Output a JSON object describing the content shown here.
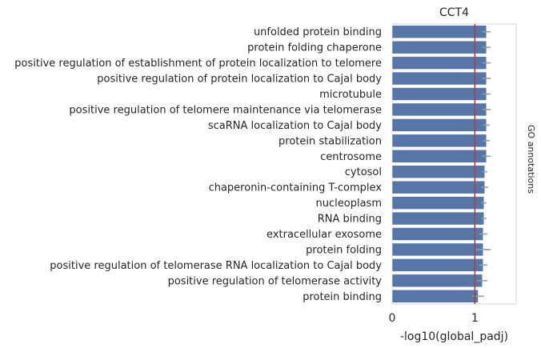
{
  "chart_data": {
    "type": "bar",
    "orientation": "horizontal",
    "title": "CCT4",
    "xlabel": "-log10(global_padj)",
    "ylabel": "GO annotations",
    "xlim": [
      0,
      1.5
    ],
    "xticks": [
      0,
      1
    ],
    "reference_line": 1.0,
    "grid": true,
    "bar_color": "#5875a8",
    "error_color": "#9a9a9a",
    "ref_color": "#c0392b",
    "categories": [
      "unfolded protein binding",
      "protein folding chaperone",
      "positive regulation of establishment of protein localization to telomere",
      "positive regulation of protein localization to Cajal body",
      "microtubule",
      "positive regulation of telomere maintenance via telomerase",
      "scaRNA localization to Cajal body",
      "protein stabilization",
      "centrosome",
      "cytosol",
      "chaperonin-containing T-complex",
      "nucleoplasm",
      "RNA binding",
      "extracellular exosome",
      "protein folding",
      "positive regulation of telomerase RNA localization to Cajal body",
      "positive regulation of telomerase activity",
      "protein binding"
    ],
    "values": [
      1.14,
      1.14,
      1.14,
      1.14,
      1.14,
      1.14,
      1.14,
      1.14,
      1.14,
      1.12,
      1.12,
      1.11,
      1.11,
      1.1,
      1.1,
      1.1,
      1.09,
      1.04
    ],
    "errors": [
      0.05,
      0.05,
      0.05,
      0.05,
      0.05,
      0.05,
      0.04,
      0.04,
      0.05,
      0.03,
      0.04,
      0.03,
      0.03,
      0.05,
      0.09,
      0.05,
      0.06,
      0.07
    ]
  }
}
